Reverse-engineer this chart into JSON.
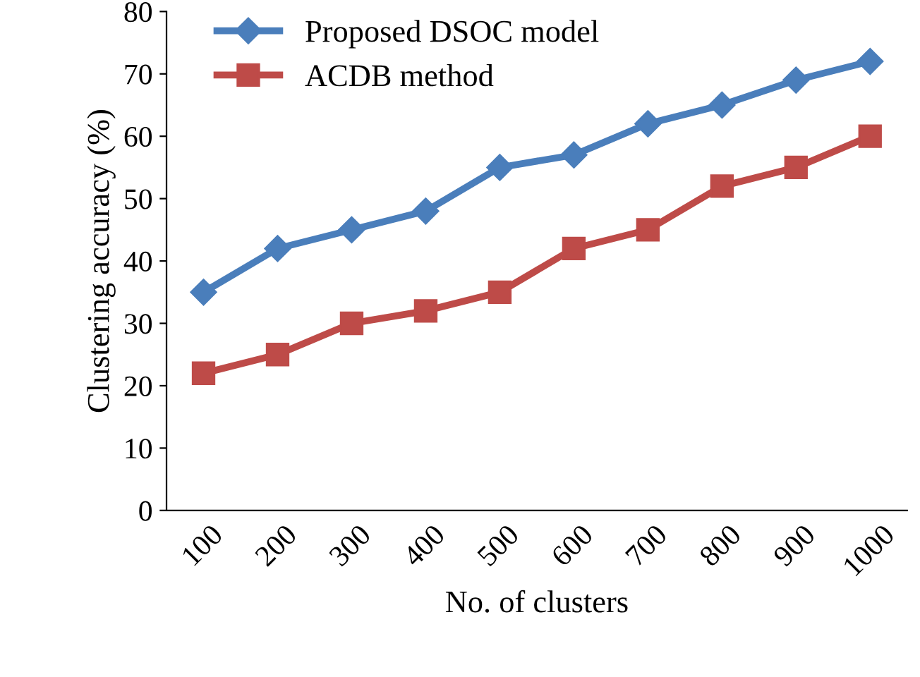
{
  "chart_data": {
    "type": "line",
    "xlabel": "No. of clusters",
    "ylabel": "Clustering accuracy (%)",
    "categories": [
      "100",
      "200",
      "300",
      "400",
      "500",
      "600",
      "700",
      "800",
      "900",
      "1000"
    ],
    "series": [
      {
        "name": "Proposed DSOC model",
        "color": "#4a7ebb",
        "marker": "diamond",
        "values": [
          35,
          42,
          45,
          48,
          55,
          57,
          62,
          65,
          69,
          72
        ]
      },
      {
        "name": "ACDB method",
        "color": "#be4b48",
        "marker": "square",
        "values": [
          22,
          25,
          30,
          32,
          35,
          42,
          45,
          52,
          55,
          60
        ]
      }
    ],
    "ylim": [
      0,
      80
    ],
    "yticks": [
      0,
      10,
      20,
      30,
      40,
      50,
      60,
      70,
      80
    ],
    "grid": false,
    "legend": "top left",
    "line_style": "solid"
  }
}
